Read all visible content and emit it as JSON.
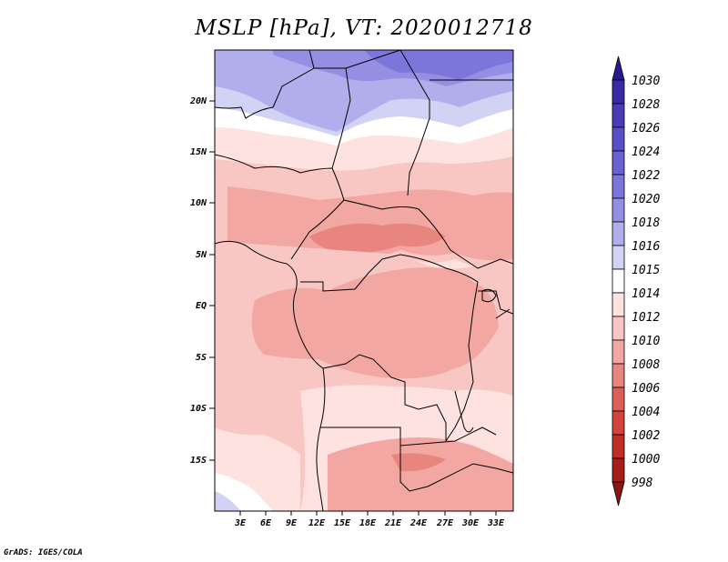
{
  "title": "MSLP [hPa], VT: 2020012718",
  "credit": "GrADS: IGES/COLA",
  "lat_labels": [
    "20N",
    "15N",
    "10N",
    "5N",
    "EQ",
    "5S",
    "10S",
    "15S"
  ],
  "lon_labels": [
    "3E",
    "6E",
    "9E",
    "12E",
    "15E",
    "18E",
    "21E",
    "24E",
    "27E",
    "30E",
    "33E"
  ],
  "colorbar": {
    "labels": [
      "1030",
      "1028",
      "1026",
      "1024",
      "1022",
      "1020",
      "1018",
      "1016",
      "1015",
      "1014",
      "1012",
      "1010",
      "1008",
      "1006",
      "1004",
      "1002",
      "1000",
      "998"
    ],
    "colors": [
      "#2b1a8f",
      "#3a2aa6",
      "#4a3bb8",
      "#5a4fc6",
      "#6a62d0",
      "#7c76da",
      "#958fe3",
      "#b1afeb",
      "#d2d2f4",
      "#ffffff",
      "#fde2e0",
      "#f9c7c3",
      "#f2a7a2",
      "#e8857f",
      "#dd5f57",
      "#d0443c",
      "#bf2e27",
      "#a61e18",
      "#8b1510"
    ]
  },
  "map": {
    "lon_range": [
      0,
      35
    ],
    "lat_range": [
      -20,
      25
    ]
  }
}
